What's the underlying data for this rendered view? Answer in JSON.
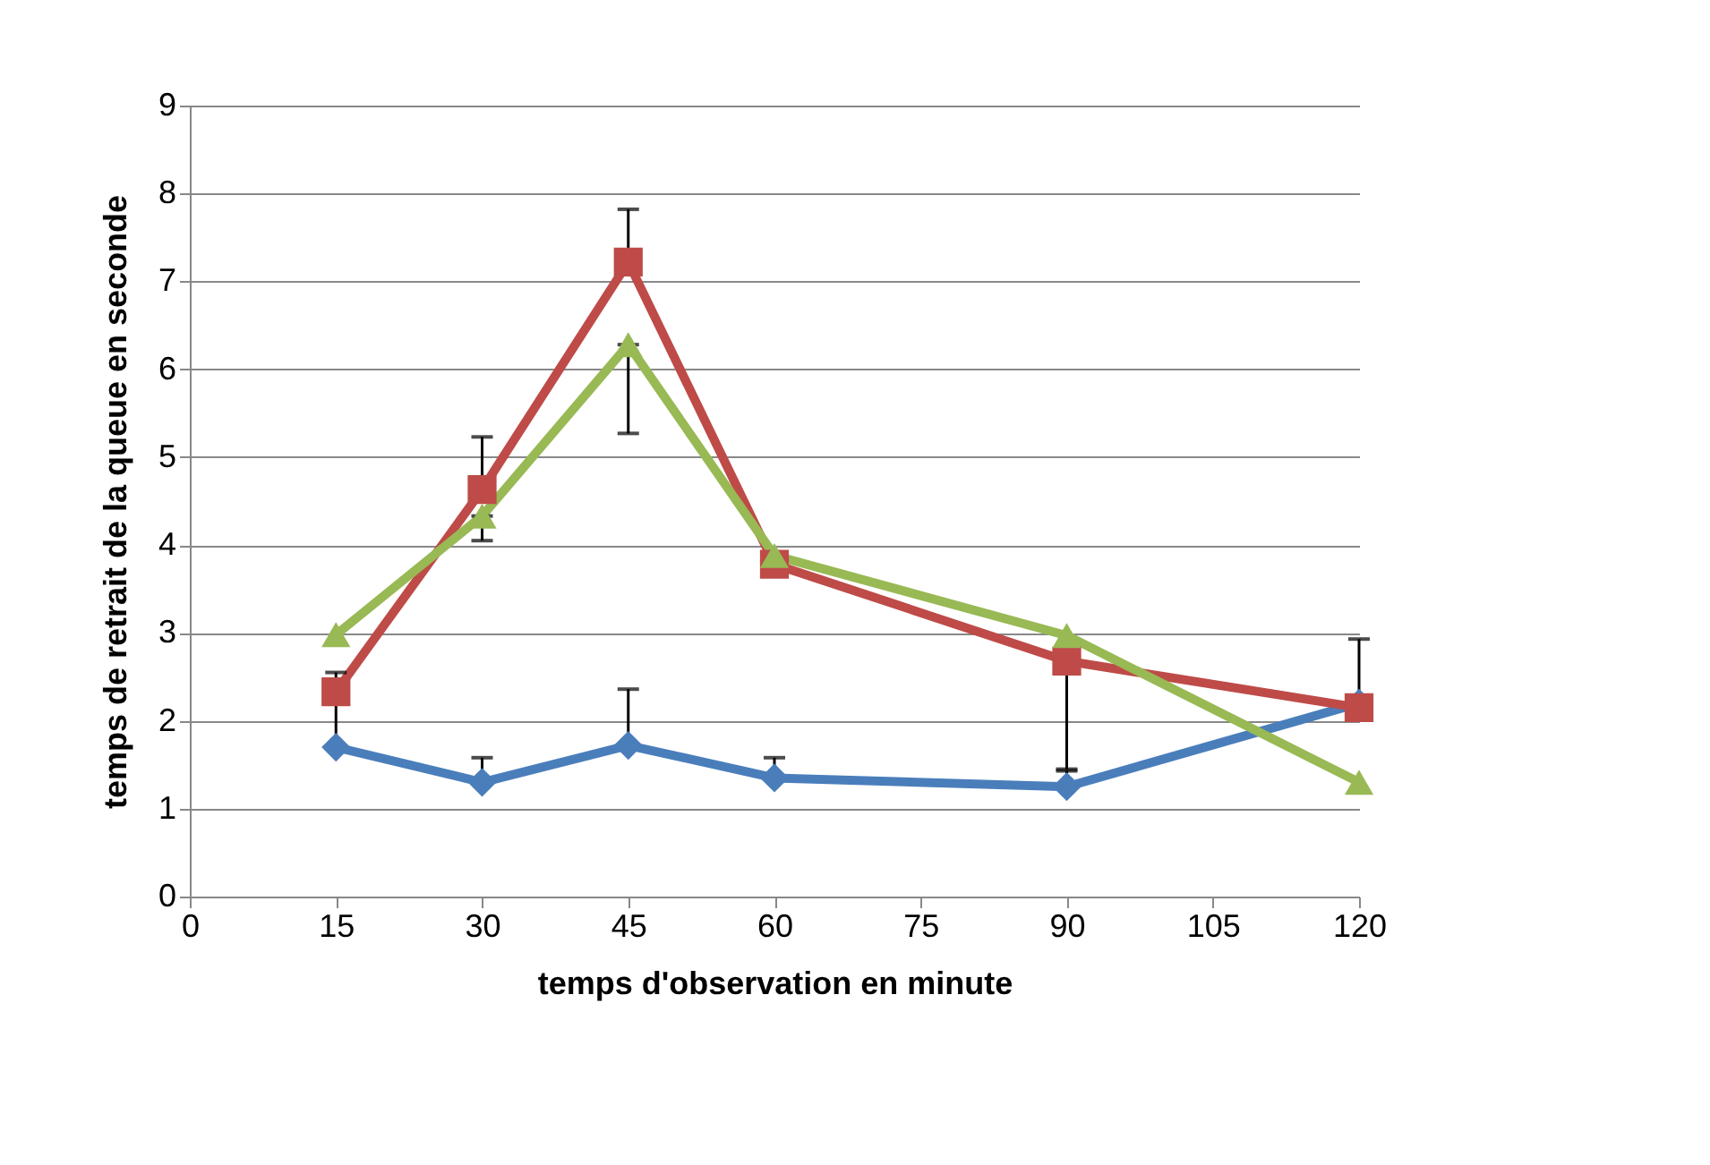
{
  "chart_data": {
    "type": "line",
    "xlabel": "temps d'observation en minute",
    "ylabel": "temps de retrait de la queue en seconde",
    "x": [
      15,
      30,
      45,
      60,
      90,
      120
    ],
    "series": [
      {
        "color": "#4a7ebb",
        "marker": "diamond",
        "values": [
          1.7,
          1.3,
          1.72,
          1.35,
          1.25,
          2.2
        ],
        "errors": [
          [
            1.7,
            2.55
          ],
          [
            1.3,
            1.58
          ],
          [
            1.72,
            2.36
          ],
          [
            1.35,
            1.58
          ],
          [
            1.25,
            1.43
          ],
          [
            2.2,
            2.93
          ]
        ]
      },
      {
        "color": "#be4b48",
        "marker": "square",
        "values": [
          2.33,
          4.63,
          7.22,
          3.78,
          2.68,
          2.15
        ],
        "errors": [
          null,
          [
            4.63,
            5.23
          ],
          [
            7.22,
            7.82
          ],
          null,
          [
            1.45,
            2.68
          ],
          null
        ]
      },
      {
        "color": "#98b954",
        "marker": "triangle",
        "values": [
          2.98,
          4.33,
          6.28,
          3.88,
          2.97,
          1.3
        ],
        "errors": [
          null,
          [
            4.05,
            4.33
          ],
          [
            5.27,
            6.28
          ],
          null,
          null,
          null
        ]
      }
    ],
    "xlim": [
      0,
      120
    ],
    "xticks": [
      0,
      15,
      30,
      45,
      60,
      75,
      90,
      105,
      120
    ],
    "ylim": [
      0,
      9
    ],
    "yticks": [
      0,
      1,
      2,
      3,
      4,
      5,
      6,
      7,
      8,
      9
    ],
    "grid": "y",
    "legend": false,
    "line_style": "solid"
  }
}
